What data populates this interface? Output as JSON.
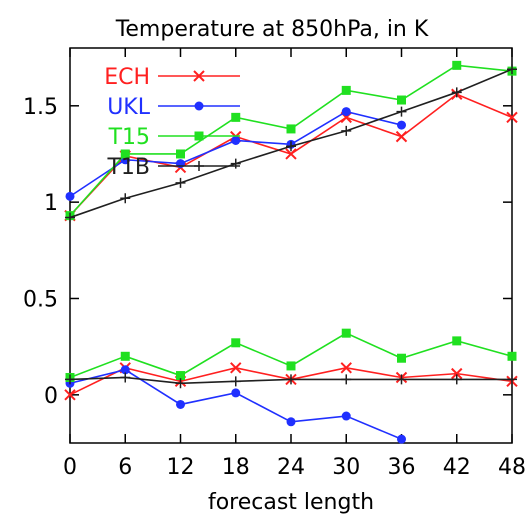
{
  "chart_data": {
    "type": "line",
    "title": "Temperature at 850hPa, in K",
    "xlabel": "forecast length",
    "ylabel": "",
    "x": [
      0,
      6,
      12,
      18,
      24,
      30,
      36,
      42,
      48
    ],
    "xlim": [
      0,
      48
    ],
    "ylim": [
      -0.25,
      1.8
    ],
    "x_ticks": [
      "0",
      "6",
      "12",
      "18",
      "24",
      "30",
      "36",
      "42",
      "48"
    ],
    "y_ticks": [
      {
        "value": 0,
        "label": "0"
      },
      {
        "value": 0.5,
        "label": "0.5"
      },
      {
        "value": 1,
        "label": "1"
      },
      {
        "value": 1.5,
        "label": "1.5"
      }
    ],
    "grid": false,
    "legend_position": "top-left",
    "series": [
      {
        "name": "ECH",
        "color": "#ff2020",
        "marker": "x",
        "values": [
          0.93,
          1.24,
          1.18,
          1.34,
          1.25,
          1.44,
          1.34,
          1.56,
          1.44
        ]
      },
      {
        "name": "UKL",
        "color": "#2030ff",
        "marker": "circle",
        "values": [
          1.03,
          1.22,
          1.2,
          1.32,
          1.3,
          1.47,
          1.4,
          null,
          null
        ]
      },
      {
        "name": "T15",
        "color": "#20e020",
        "marker": "square",
        "values": [
          0.93,
          1.25,
          1.25,
          1.44,
          1.38,
          1.58,
          1.53,
          1.71,
          1.68
        ]
      },
      {
        "name": "T1B",
        "color": "#202020",
        "marker": "plus",
        "values": [
          0.92,
          1.02,
          1.1,
          1.2,
          1.29,
          1.37,
          1.47,
          1.57,
          1.69
        ]
      },
      {
        "name": "ECH",
        "color": "#ff2020",
        "marker": "x",
        "legend": false,
        "values": [
          0.0,
          0.14,
          0.07,
          0.14,
          0.08,
          0.14,
          0.09,
          0.11,
          0.07
        ]
      },
      {
        "name": "UKL",
        "color": "#2030ff",
        "marker": "circle",
        "legend": false,
        "values": [
          0.06,
          0.13,
          -0.05,
          0.01,
          -0.14,
          -0.11,
          -0.23,
          null,
          null
        ]
      },
      {
        "name": "T15",
        "color": "#20e020",
        "marker": "square",
        "legend": false,
        "values": [
          0.09,
          0.2,
          0.1,
          0.27,
          0.15,
          0.32,
          0.19,
          0.28,
          0.2
        ]
      },
      {
        "name": "T1B",
        "color": "#202020",
        "marker": "plus",
        "legend": false,
        "values": [
          0.08,
          0.09,
          0.06,
          0.07,
          0.08,
          0.08,
          0.08,
          0.08,
          0.08
        ]
      }
    ]
  }
}
